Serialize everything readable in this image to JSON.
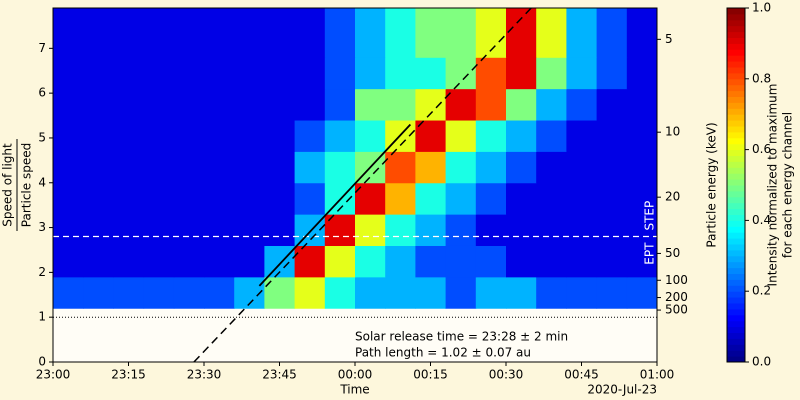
{
  "chart_data": {
    "type": "heatmap",
    "xlabel": "Time",
    "date_label": "2020-Jul-23",
    "ylabel": [
      "Speed of light",
      "Particle speed"
    ],
    "y2label": "Particle energy (keV)",
    "xlim": [
      0,
      120
    ],
    "xticks": [
      {
        "value": 0,
        "label": "23:00"
      },
      {
        "value": 15,
        "label": "23:15"
      },
      {
        "value": 30,
        "label": "23:30"
      },
      {
        "value": 45,
        "label": "23:45"
      },
      {
        "value": 60,
        "label": "00:00"
      },
      {
        "value": 75,
        "label": "00:15"
      },
      {
        "value": 90,
        "label": "00:30"
      },
      {
        "value": 105,
        "label": "00:45"
      },
      {
        "value": 120,
        "label": "01:00"
      }
    ],
    "ylim": [
      0,
      7.9
    ],
    "yticks": [
      0,
      1,
      2,
      3,
      4,
      5,
      6,
      7
    ],
    "y2ticks": [
      5,
      10,
      20,
      50,
      100,
      200,
      500
    ],
    "x_edges": [
      0,
      6,
      12,
      18,
      24,
      30,
      36,
      42,
      48,
      54,
      60,
      66,
      72,
      78,
      84,
      90,
      96,
      102,
      108,
      114,
      120
    ],
    "y_edges": [
      1.2,
      1.9,
      2.6,
      3.3,
      4.0,
      4.7,
      5.4,
      6.1,
      6.8,
      7.9
    ],
    "values": [
      [
        0.2,
        0.2,
        0.2,
        0.2,
        0.2,
        0.2,
        0.3,
        0.5,
        0.6,
        0.4,
        0.3,
        0.3,
        0.3,
        0.2,
        0.3,
        0.3,
        0.2,
        0.2,
        0.2,
        0.2
      ],
      [
        0.1,
        0.1,
        0.1,
        0.1,
        0.1,
        0.1,
        0.1,
        0.3,
        0.9,
        0.6,
        0.4,
        0.3,
        0.2,
        0.2,
        0.2,
        0.1,
        0.1,
        0.1,
        0.1,
        0.1
      ],
      [
        0.1,
        0.1,
        0.1,
        0.1,
        0.1,
        0.1,
        0.1,
        0.1,
        0.3,
        0.9,
        0.6,
        0.4,
        0.3,
        0.2,
        0.1,
        0.1,
        0.1,
        0.1,
        0.1,
        0.1
      ],
      [
        0.1,
        0.1,
        0.1,
        0.1,
        0.1,
        0.1,
        0.1,
        0.1,
        0.2,
        0.4,
        0.9,
        0.7,
        0.4,
        0.3,
        0.2,
        0.1,
        0.1,
        0.1,
        0.1,
        0.1
      ],
      [
        0.1,
        0.1,
        0.1,
        0.1,
        0.1,
        0.1,
        0.1,
        0.1,
        0.3,
        0.4,
        0.5,
        0.8,
        0.7,
        0.4,
        0.3,
        0.2,
        0.1,
        0.1,
        0.1,
        0.1
      ],
      [
        0.1,
        0.1,
        0.1,
        0.1,
        0.1,
        0.1,
        0.1,
        0.1,
        0.2,
        0.3,
        0.4,
        0.6,
        0.9,
        0.6,
        0.4,
        0.3,
        0.2,
        0.1,
        0.1,
        0.1
      ],
      [
        0.1,
        0.1,
        0.1,
        0.1,
        0.1,
        0.1,
        0.1,
        0.1,
        0.1,
        0.2,
        0.5,
        0.5,
        0.6,
        0.9,
        0.8,
        0.5,
        0.3,
        0.2,
        0.1,
        0.1
      ],
      [
        0.1,
        0.1,
        0.1,
        0.1,
        0.1,
        0.1,
        0.1,
        0.1,
        0.1,
        0.2,
        0.3,
        0.4,
        0.4,
        0.5,
        0.8,
        0.9,
        0.5,
        0.3,
        0.2,
        0.1
      ],
      [
        0.1,
        0.1,
        0.1,
        0.1,
        0.1,
        0.1,
        0.1,
        0.1,
        0.1,
        0.2,
        0.3,
        0.4,
        0.5,
        0.5,
        0.6,
        0.9,
        0.6,
        0.3,
        0.2,
        0.1
      ]
    ],
    "fit_line": {
      "x": [
        28,
        95
      ],
      "y": [
        0,
        7.9
      ]
    },
    "fit_segment": {
      "x": [
        41,
        71
      ],
      "y": [
        1.7,
        5.3
      ]
    },
    "boundary": {
      "value": 2.8,
      "above": "STEP",
      "below": "EPT"
    },
    "reference_line": 1,
    "annotations": [
      "Solar release time = 23:28 ± 2 min",
      "Path length = 1.02 ± 0.07 au"
    ],
    "colorbar": {
      "label": [
        "Intensity normalized to maximum",
        "for each energy channel"
      ],
      "lim": [
        0,
        1
      ],
      "ticks": [
        {
          "value": 0,
          "label": "0.0"
        },
        {
          "value": 0.2,
          "label": "0.2"
        },
        {
          "value": 0.4,
          "label": "0.4"
        },
        {
          "value": 0.6,
          "label": "0.6"
        },
        {
          "value": 0.8,
          "label": "0.8"
        },
        {
          "value": 1,
          "label": "1.0"
        }
      ]
    }
  }
}
